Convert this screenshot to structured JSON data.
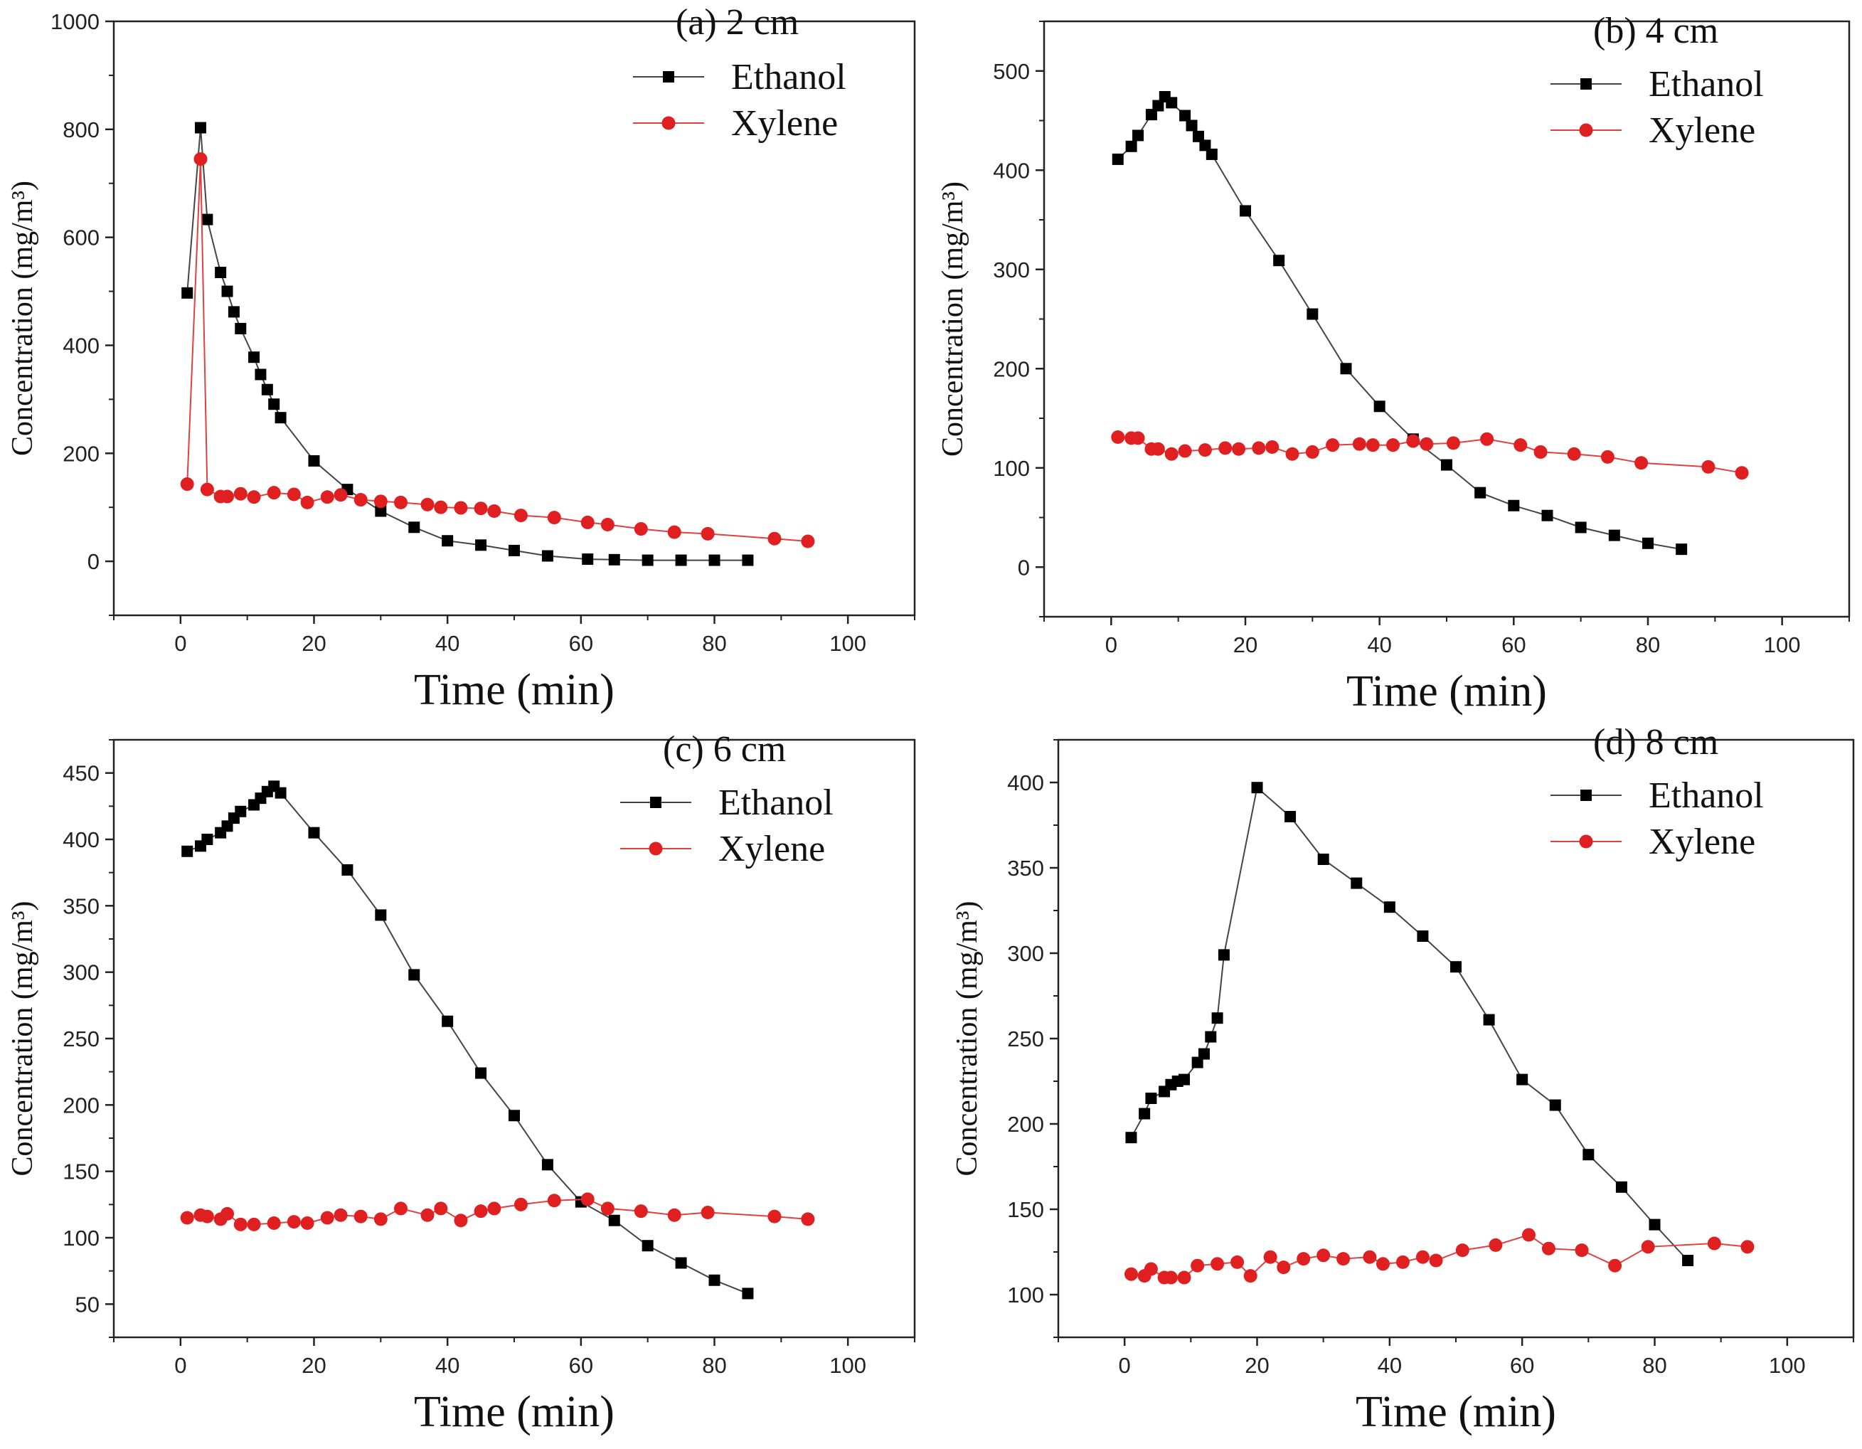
{
  "colors": {
    "ethanol": "#000000",
    "xylene": "#e02020",
    "line_ethanol": "#444444",
    "line_xylene": "#e04040",
    "axis": "#222222"
  },
  "chart_data": [
    {
      "type": "line",
      "title": "(a) 2 cm",
      "xlabel": "Time (min)",
      "ylabel": "Concentration (mg/m³)",
      "xlim": [
        -10,
        110
      ],
      "ylim": [
        -100,
        1000
      ],
      "xticks": [
        0,
        20,
        40,
        60,
        80,
        100
      ],
      "yticks": [
        0,
        200,
        400,
        600,
        800,
        1000
      ],
      "series": [
        {
          "name": "Ethanol",
          "x": [
            1,
            3,
            4,
            6,
            7,
            8,
            9,
            11,
            12,
            13,
            14,
            15,
            20,
            25,
            30,
            35,
            40,
            45,
            50,
            55,
            61,
            65,
            70,
            75,
            80,
            85
          ],
          "y": [
            497,
            803,
            633,
            535,
            500,
            462,
            431,
            378,
            346,
            318,
            291,
            266,
            186,
            133,
            93,
            63,
            38,
            30,
            20,
            10,
            4,
            3,
            2,
            2,
            2,
            2
          ]
        },
        {
          "name": "Xylene",
          "x": [
            1,
            3,
            4,
            6,
            7,
            9,
            11,
            14,
            17,
            19,
            22,
            24,
            27,
            30,
            33,
            37,
            39,
            42,
            45,
            47,
            51,
            56,
            61,
            64,
            69,
            74,
            79,
            89,
            94
          ],
          "y": [
            143,
            745,
            133,
            120,
            120,
            125,
            119,
            127,
            124,
            109,
            119,
            123,
            114,
            111,
            109,
            105,
            100,
            99,
            98,
            93,
            85,
            81,
            72,
            68,
            60,
            54,
            51,
            42,
            37
          ]
        }
      ]
    },
    {
      "type": "line",
      "title": "(b) 4 cm",
      "xlabel": "Time (min)",
      "ylabel": "Concentration (mg/m³)",
      "xlim": [
        -10,
        110
      ],
      "ylim": [
        -50,
        550
      ],
      "xticks": [
        0,
        20,
        40,
        60,
        80,
        100
      ],
      "yticks": [
        0,
        100,
        200,
        300,
        400,
        500
      ],
      "series": [
        {
          "name": "Ethanol",
          "x": [
            1,
            3,
            4,
            6,
            7,
            8,
            9,
            11,
            12,
            13,
            14,
            15,
            20,
            25,
            30,
            35,
            40,
            45,
            50,
            55,
            60,
            65,
            70,
            75,
            80,
            85
          ],
          "y": [
            411,
            424,
            435,
            456,
            465,
            474,
            468,
            455,
            445,
            434,
            425,
            416,
            359,
            309,
            255,
            200,
            162,
            129,
            103,
            75,
            62,
            52,
            40,
            32,
            24,
            18
          ]
        },
        {
          "name": "Xylene",
          "x": [
            1,
            3,
            4,
            6,
            7,
            9,
            11,
            14,
            17,
            19,
            22,
            24,
            27,
            30,
            33,
            37,
            39,
            42,
            45,
            47,
            51,
            56,
            61,
            64,
            69,
            74,
            79,
            89,
            94
          ],
          "y": [
            131,
            130,
            130,
            119,
            119,
            114,
            117,
            118,
            120,
            119,
            120,
            121,
            114,
            116,
            123,
            124,
            123,
            123,
            127,
            124,
            125,
            129,
            123,
            116,
            114,
            111,
            105,
            101,
            95
          ]
        }
      ]
    },
    {
      "type": "line",
      "title": "(c) 6 cm",
      "xlabel": "Time (min)",
      "ylabel": "Concentration (mg/m³)",
      "xlim": [
        -10,
        110
      ],
      "ylim": [
        25,
        475
      ],
      "xticks": [
        0,
        20,
        40,
        60,
        80,
        100
      ],
      "yticks": [
        50,
        100,
        150,
        200,
        250,
        300,
        350,
        400,
        450
      ],
      "series": [
        {
          "name": "Ethanol",
          "x": [
            1,
            3,
            4,
            6,
            7,
            8,
            9,
            11,
            12,
            13,
            14,
            15,
            20,
            25,
            30,
            35,
            40,
            45,
            50,
            55,
            60,
            65,
            70,
            75,
            80,
            85
          ],
          "y": [
            391,
            395,
            400,
            405,
            410,
            416,
            421,
            426,
            431,
            436,
            440,
            435,
            405,
            377,
            343,
            298,
            263,
            224,
            192,
            155,
            127,
            113,
            94,
            81,
            68,
            58
          ]
        },
        {
          "name": "Xylene",
          "x": [
            1,
            3,
            4,
            6,
            7,
            9,
            11,
            14,
            17,
            19,
            22,
            24,
            27,
            30,
            33,
            37,
            39,
            42,
            45,
            47,
            51,
            56,
            61,
            64,
            69,
            74,
            79,
            89,
            94
          ],
          "y": [
            115,
            117,
            116,
            114,
            118,
            110,
            110,
            111,
            112,
            111,
            115,
            117,
            116,
            114,
            122,
            117,
            122,
            113,
            120,
            122,
            125,
            128,
            129,
            122,
            120,
            117,
            119,
            116,
            114
          ]
        }
      ]
    },
    {
      "type": "line",
      "title": "(d) 8 cm",
      "xlabel": "Time (min)",
      "ylabel": "Concentration (mg/m³)",
      "xlim": [
        -10,
        110
      ],
      "ylim": [
        75,
        425
      ],
      "xticks": [
        0,
        20,
        40,
        60,
        80,
        100
      ],
      "yticks": [
        100,
        150,
        200,
        250,
        300,
        350,
        400
      ],
      "series": [
        {
          "name": "Ethanol",
          "x": [
            1,
            3,
            4,
            6,
            7,
            8,
            9,
            11,
            12,
            13,
            14,
            15,
            20,
            25,
            30,
            35,
            40,
            45,
            50,
            55,
            60,
            65,
            70,
            75,
            80,
            85
          ],
          "y": [
            192,
            206,
            215,
            219,
            223,
            225,
            226,
            236,
            241,
            251,
            262,
            299,
            397,
            380,
            355,
            341,
            327,
            310,
            292,
            261,
            226,
            211,
            182,
            163,
            141,
            120
          ]
        },
        {
          "name": "Xylene",
          "x": [
            1,
            3,
            4,
            6,
            7,
            9,
            11,
            14,
            17,
            19,
            22,
            24,
            27,
            30,
            33,
            37,
            39,
            42,
            45,
            47,
            51,
            56,
            61,
            64,
            69,
            74,
            79,
            89,
            94
          ],
          "y": [
            112,
            111,
            115,
            110,
            110,
            110,
            117,
            118,
            119,
            111,
            122,
            116,
            121,
            123,
            121,
            122,
            118,
            119,
            122,
            120,
            126,
            129,
            135,
            127,
            126,
            117,
            128,
            130,
            128
          ]
        }
      ]
    }
  ]
}
